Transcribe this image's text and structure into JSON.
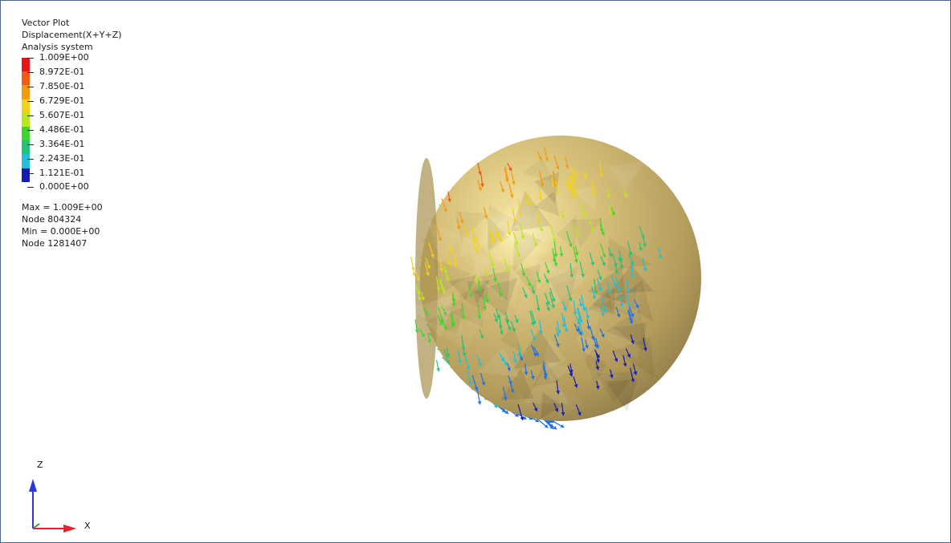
{
  "legend": {
    "title_lines": [
      "Vector Plot",
      "Displacement(X+Y+Z)",
      "Analysis system"
    ],
    "scale": [
      {
        "value": "1.009E+00",
        "color": "#e8141c"
      },
      {
        "value": "8.972E-01",
        "color": "#f05a14"
      },
      {
        "value": "7.850E-01",
        "color": "#f59a0f"
      },
      {
        "value": "6.729E-01",
        "color": "#f2d218"
      },
      {
        "value": "5.607E-01",
        "color": "#b8e81c"
      },
      {
        "value": "4.486E-01",
        "color": "#3ed62a"
      },
      {
        "value": "3.364E-01",
        "color": "#22c47a"
      },
      {
        "value": "2.243E-01",
        "color": "#20c0d8"
      },
      {
        "value": "1.121E-01",
        "color": "#1c72e6"
      },
      {
        "value": "0.000E+00",
        "color": "#141ab4"
      }
    ],
    "max_label": "Max = 1.009E+00",
    "max_node": "Node 804324",
    "min_label": "Min = 0.000E+00",
    "min_node": "Node 1281407"
  },
  "triad": {
    "z_label": "Z",
    "x_label": "X",
    "z_color": "#2a3ad8",
    "x_color": "#e82030",
    "origin_color": "#2a9a3a"
  },
  "model": {
    "surface_color": "#c8b06a",
    "highlight_color": "#f4e29a",
    "shadow_color": "#8c7a48"
  }
}
